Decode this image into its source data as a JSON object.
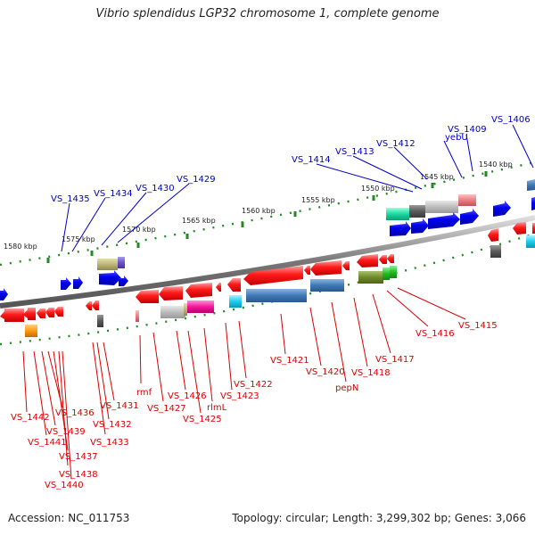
{
  "title": "Vibrio splendidus LGP32 chromosome 1, complete genome",
  "footer": {
    "accession": "Accession: NC_011753",
    "summary": "Topology: circular; Length: 3,299,302 bp; Genes: 3,066"
  },
  "colors": {
    "backbone": "#777777",
    "forward_label": "#0000cc",
    "reverse_label": "#dd0000",
    "tick": "#228b22"
  },
  "kbp_labels": [
    "1580 kbp",
    "1575 kbp",
    "1570 kbp",
    "1565 kbp",
    "1560 kbp",
    "1555 kbp",
    "1550 kbp",
    "1545 kbp",
    "1540 kbp"
  ],
  "top_labels": [
    "VS_1435",
    "VS_1434",
    "VS_1430",
    "VS_1429",
    "VS_1414",
    "VS_1413",
    "VS_1412",
    "yebU",
    "VS_1409",
    "VS_1406"
  ],
  "bottom_labels": [
    "VS_1442",
    "VS_1441",
    "VS_1439",
    "VS_1436",
    "VS_1437",
    "VS_1438",
    "VS_1440",
    "VS_1431",
    "VS_1432",
    "VS_1433",
    "rmf",
    "VS_1427",
    "VS_1426",
    "VS_1425",
    "rlmL",
    "VS_1423",
    "VS_1422",
    "VS_1421",
    "VS_1420",
    "pepN",
    "VS_1418",
    "VS_1417",
    "VS_1416",
    "VS_1415"
  ]
}
